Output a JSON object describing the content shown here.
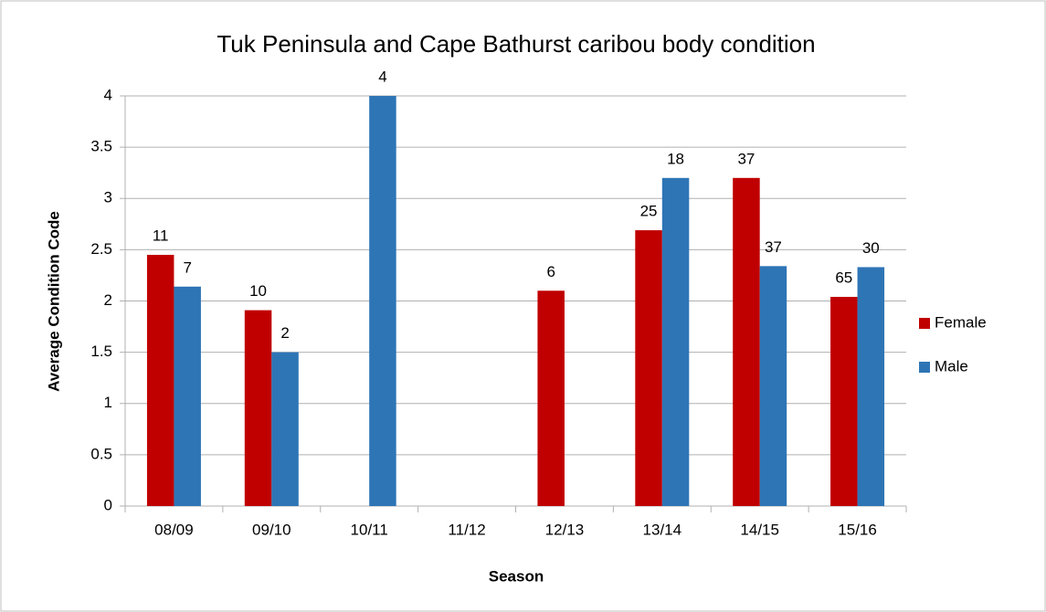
{
  "chart_data": {
    "type": "bar",
    "title": "Tuk Peninsula and Cape Bathurst caribou body condition",
    "x_label": "Season",
    "y_label": "Average Condition Code",
    "categories": [
      "08/09",
      "09/10",
      "10/11",
      "11/12",
      "12/13",
      "13/14",
      "14/15",
      "15/16"
    ],
    "series": [
      {
        "name": "Female",
        "color": "#c00000",
        "values": [
          2.45,
          1.91,
          null,
          null,
          2.1,
          2.69,
          3.2,
          2.04
        ],
        "labels": [
          11,
          10,
          null,
          null,
          6,
          25,
          37,
          65
        ]
      },
      {
        "name": "Male",
        "color": "#2e75b6",
        "values": [
          2.14,
          1.5,
          4,
          null,
          null,
          3.2,
          2.34,
          2.33
        ],
        "labels": [
          7,
          2,
          4,
          null,
          null,
          18,
          37,
          30
        ]
      }
    ],
    "ylim": [
      0,
      4
    ],
    "yticks": [
      0,
      0.5,
      1,
      1.5,
      2,
      2.5,
      3,
      3.5,
      4
    ],
    "grid": true,
    "legend": "right"
  }
}
